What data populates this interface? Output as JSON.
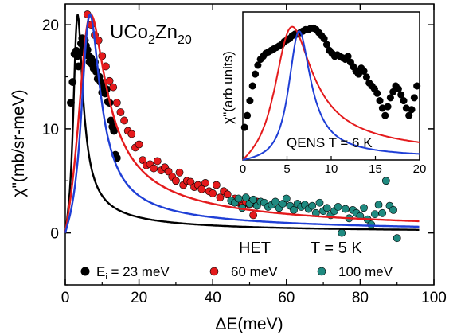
{
  "chart_data": [
    {
      "type": "scatter",
      "title": "UCo2Zn20",
      "title_parts": {
        "main": "UCo",
        "sub1": "2",
        "mid": "Zn",
        "sub2": "20"
      },
      "xlabel": "ΔE(meV)",
      "ylabel": "χ\"(mb/sr-meV)",
      "xlim": [
        0,
        100
      ],
      "ylim": [
        -5,
        22
      ],
      "xticks": [
        "0",
        "20",
        "40",
        "60",
        "80",
        "100"
      ],
      "xtick_values": [
        0,
        20,
        40,
        60,
        80,
        100
      ],
      "yticks": [
        "0",
        "10",
        "20"
      ],
      "ytick_values": [
        0,
        10,
        20
      ],
      "annotation": {
        "het": "HET",
        "temp": "T = 5 K"
      },
      "legend": {
        "prefix_main": "E",
        "prefix_sub": "i",
        "prefix_rest": " = 23 meV",
        "items": [
          "60 meV",
          "100 meV"
        ],
        "placement": "bottom"
      },
      "series": [
        {
          "label_ref": "23 meV",
          "color": "#000000",
          "kind": "points",
          "x": [
            1.5,
            2.0,
            2.5,
            3.0,
            3.3,
            3.6,
            4.0,
            4.3,
            4.6,
            5.0,
            5.3,
            5.6,
            6.0,
            6.3,
            6.6,
            7.0,
            7.3,
            7.7,
            8.0,
            8.4,
            8.8,
            9.2,
            9.6,
            10.0,
            10.4,
            10.8,
            11.2,
            11.6,
            12.0,
            12.4,
            12.8,
            13.2,
            13.6,
            14.0
          ],
          "y": [
            12.5,
            14.5,
            17.2,
            17.5,
            17.0,
            16.0,
            17.3,
            18.2,
            18.7,
            17.8,
            18.5,
            18.0,
            17.6,
            17.0,
            16.4,
            16.8,
            16.2,
            15.8,
            16.4,
            15.5,
            14.8,
            15.0,
            14.5,
            13.5,
            14.1,
            13.4,
            13.8,
            12.6,
            12.5,
            10.8,
            10.2,
            9.8,
            7.5,
            7.2
          ]
        },
        {
          "label_ref": "60 meV",
          "color": "#e41a1c",
          "kind": "points",
          "x": [
            6.0,
            7.0,
            8.0,
            9.0,
            10.0,
            11.0,
            12.0,
            13.0,
            14.0,
            15.0,
            16.0,
            17.0,
            18.0,
            19.0,
            20.0,
            21.0,
            22.0,
            23.0,
            24.0,
            25.0,
            26.0,
            27.0,
            28.0,
            29.0,
            30.0,
            31.0,
            32.0,
            33.0,
            34.0,
            35.0,
            36.0,
            37.0,
            38.0,
            39.0,
            40.0,
            41.0,
            42.0,
            43.0,
            44.0,
            45.0,
            46.0,
            47.0,
            48.0,
            49.0,
            50.0,
            51.0,
            52.0
          ],
          "y": [
            21.0,
            20.0,
            19.0,
            18.5,
            17.0,
            16.0,
            14.6,
            14.0,
            12.5,
            11.6,
            10.8,
            9.8,
            9.5,
            8.2,
            8.5,
            7.0,
            6.5,
            6.6,
            6.2,
            6.9,
            6.0,
            6.3,
            5.9,
            5.4,
            5.0,
            5.8,
            4.6,
            5.0,
            4.9,
            4.4,
            4.6,
            4.2,
            4.8,
            4.0,
            3.8,
            4.6,
            3.4,
            4.0,
            3.7,
            3.1,
            3.3,
            2.9,
            2.6,
            3.0,
            2.7,
            1.7,
            3.0
          ]
        },
        {
          "label_ref": "100 meV",
          "color": "#1f8a80",
          "kind": "points",
          "x": [
            45.0,
            46.0,
            47.0,
            48.0,
            49.0,
            50.0,
            51.0,
            52.0,
            53.0,
            54.0,
            55.0,
            56.0,
            57.0,
            58.0,
            59.0,
            60.0,
            61.0,
            62.0,
            63.0,
            64.0,
            65.0,
            66.0,
            67.0,
            68.0,
            69.0,
            70.0,
            71.0,
            72.0,
            73.0,
            74.0,
            75.0,
            76.0,
            77.0,
            78.0,
            79.0,
            80.0,
            81.0,
            82.0,
            83.0,
            84.0,
            85.0,
            86.0,
            87.0,
            88.0,
            89.0,
            90.0
          ],
          "y": [
            3.1,
            2.9,
            3.3,
            2.4,
            3.4,
            2.8,
            3.2,
            2.6,
            3.0,
            2.9,
            2.5,
            2.7,
            3.0,
            2.4,
            2.8,
            3.3,
            2.6,
            2.2,
            2.8,
            2.5,
            2.7,
            2.3,
            2.6,
            1.9,
            2.9,
            2.1,
            2.4,
            1.7,
            2.1,
            2.5,
            0.0,
            2.3,
            1.4,
            2.2,
            1.9,
            1.6,
            2.4,
            1.3,
            0.8,
            1.8,
            2.7,
            1.9,
            5.0,
            2.6,
            2.2,
            -0.5
          ]
        },
        {
          "name_ref": "black model",
          "color": "#000000",
          "kind": "curve",
          "x0": 3.0,
          "g": 1.5,
          "A": 21.0
        },
        {
          "name_ref": "red model",
          "color": "#e41a1c",
          "kind": "curve",
          "x0": 5.5,
          "g": 4.2,
          "A": 21.0
        },
        {
          "name_ref": "blue model",
          "color": "#1f3fd6",
          "kind": "curve",
          "x0": 6.0,
          "g": 3.0,
          "A": 21.0
        }
      ]
    },
    {
      "type": "scatter",
      "title": "QENS  T = 6 K",
      "ylabel": "χ\"(arb units)",
      "xlim": [
        0,
        20
      ],
      "ylim": [
        0,
        1
      ],
      "xticks": [
        "0",
        "5",
        "10",
        "15",
        "20"
      ],
      "xtick_values": [
        0,
        5,
        10,
        15,
        20
      ],
      "series": [
        {
          "label_ref": "QENS data",
          "color": "#000000",
          "kind": "points",
          "x": [
            0.2,
            0.5,
            0.8,
            1.1,
            1.4,
            1.7,
            2.0,
            2.3,
            2.6,
            2.9,
            3.2,
            3.5,
            3.8,
            4.1,
            4.4,
            4.7,
            5.0,
            5.3,
            5.6,
            5.9,
            6.2,
            6.5,
            6.8,
            7.1,
            7.4,
            7.7,
            8.0,
            8.3,
            8.6,
            8.9,
            9.2,
            9.5,
            9.8,
            10.1,
            10.4,
            10.7,
            11.0,
            11.3,
            11.6,
            11.9,
            12.2,
            12.5,
            12.8,
            13.1,
            13.4,
            13.7,
            14.0,
            14.3,
            14.6,
            14.9,
            15.2,
            15.5,
            15.8,
            16.1,
            16.4,
            16.7,
            17.0,
            17.3,
            17.6,
            17.9,
            18.2,
            18.5,
            18.8,
            19.1,
            19.4,
            19.7
          ],
          "y": [
            0.22,
            0.3,
            0.4,
            0.5,
            0.58,
            0.64,
            0.68,
            0.7,
            0.72,
            0.73,
            0.74,
            0.75,
            0.76,
            0.77,
            0.78,
            0.8,
            0.81,
            0.82,
            0.84,
            0.85,
            0.85,
            0.86,
            0.87,
            0.88,
            0.88,
            0.89,
            0.89,
            0.88,
            0.86,
            0.84,
            0.82,
            0.78,
            0.74,
            0.72,
            0.7,
            0.71,
            0.7,
            0.69,
            0.68,
            0.7,
            0.66,
            0.63,
            0.6,
            0.58,
            0.62,
            0.6,
            0.56,
            0.52,
            0.5,
            0.48,
            0.45,
            0.4,
            0.35,
            0.3,
            0.36,
            0.42,
            0.46,
            0.5,
            0.48,
            0.44,
            0.4,
            0.35,
            0.3,
            0.34,
            0.42,
            0.5
          ]
        },
        {
          "name_ref": "red model",
          "color": "#e41a1c",
          "kind": "curve",
          "x0": 5.0,
          "g": 2.5,
          "A": 0.9
        },
        {
          "name_ref": "blue model",
          "color": "#1f3fd6",
          "kind": "curve",
          "x0": 6.2,
          "g": 1.5,
          "A": 0.87
        }
      ]
    }
  ]
}
